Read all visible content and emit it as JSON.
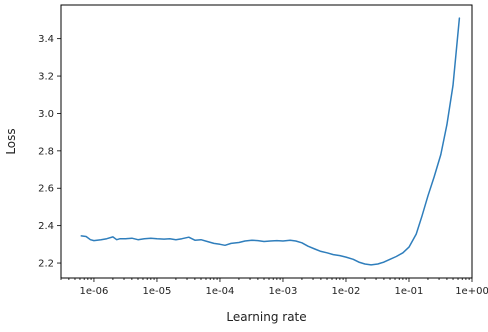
{
  "chart_data": {
    "type": "line",
    "title": "",
    "xlabel": "Learning rate",
    "ylabel": "Loss",
    "xscale": "log",
    "xlim": [
      3e-07,
      1.0
    ],
    "ylim": [
      2.12,
      3.58
    ],
    "grid": false,
    "legend": "none",
    "x_ticks": [
      {
        "value": 1e-06,
        "label": "1e-06"
      },
      {
        "value": 1e-05,
        "label": "1e-05"
      },
      {
        "value": 0.0001,
        "label": "1e-04"
      },
      {
        "value": 0.001,
        "label": "1e-03"
      },
      {
        "value": 0.01,
        "label": "1e-02"
      },
      {
        "value": 0.1,
        "label": "1e-01"
      },
      {
        "value": 1.0,
        "label": "1e+00"
      }
    ],
    "y_ticks": [
      {
        "value": 2.2,
        "label": "2.2"
      },
      {
        "value": 2.4,
        "label": "2.4"
      },
      {
        "value": 2.6,
        "label": "2.6"
      },
      {
        "value": 2.8,
        "label": "2.8"
      },
      {
        "value": 3.0,
        "label": "3.0"
      },
      {
        "value": 3.2,
        "label": "3.2"
      },
      {
        "value": 3.4,
        "label": "3.4"
      }
    ],
    "colors": {
      "line": "#2f7ebc",
      "axes": "#000000"
    },
    "series": [
      {
        "x": [
          6.3e-07,
          7.5e-07,
          8.8e-07,
          1e-06,
          1.3e-06,
          1.6e-06,
          2e-06,
          2.3e-06,
          2.6e-06,
          3.2e-06,
          4e-06,
          5e-06,
          6.3e-06,
          8e-06,
          1e-05,
          1.3e-05,
          1.6e-05,
          2e-05,
          2.5e-05,
          3.2e-05,
          4e-05,
          5e-05,
          6.3e-05,
          8e-05,
          0.0001,
          0.00012,
          0.00015,
          0.0002,
          0.00025,
          0.00032,
          0.0004,
          0.0005,
          0.00063,
          0.0008,
          0.001,
          0.0013,
          0.0016,
          0.002,
          0.0025,
          0.0032,
          0.004,
          0.005,
          0.0063,
          0.008,
          0.01,
          0.013,
          0.016,
          0.02,
          0.025,
          0.032,
          0.04,
          0.05,
          0.063,
          0.08,
          0.1,
          0.13,
          0.16,
          0.2,
          0.25,
          0.32,
          0.4,
          0.5,
          0.63
        ],
        "y": [
          2.345,
          2.342,
          2.325,
          2.32,
          2.325,
          2.33,
          2.34,
          2.325,
          2.33,
          2.33,
          2.333,
          2.325,
          2.33,
          2.333,
          2.33,
          2.328,
          2.33,
          2.325,
          2.33,
          2.338,
          2.322,
          2.325,
          2.315,
          2.305,
          2.3,
          2.295,
          2.305,
          2.31,
          2.318,
          2.322,
          2.32,
          2.315,
          2.318,
          2.32,
          2.318,
          2.322,
          2.318,
          2.308,
          2.29,
          2.275,
          2.262,
          2.255,
          2.245,
          2.24,
          2.232,
          2.22,
          2.205,
          2.195,
          2.19,
          2.195,
          2.205,
          2.22,
          2.235,
          2.255,
          2.285,
          2.355,
          2.45,
          2.56,
          2.66,
          2.78,
          2.94,
          3.15,
          3.51
        ]
      }
    ]
  }
}
